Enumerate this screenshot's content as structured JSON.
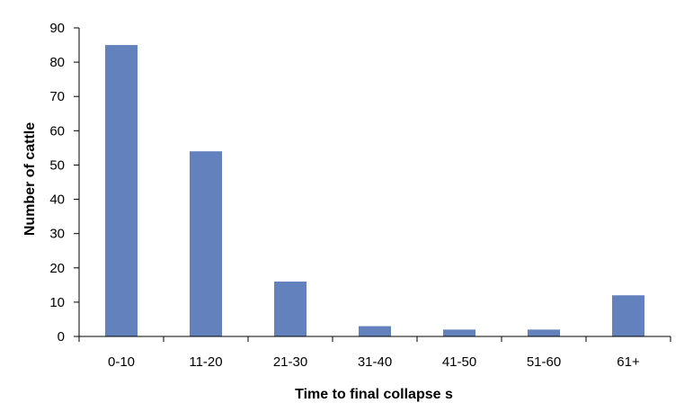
{
  "chart_data": {
    "type": "bar",
    "title": "",
    "xlabel": "Time to final collapse s",
    "ylabel": "Number of cattle",
    "categories": [
      "0-10",
      "11-20",
      "21-30",
      "31-40",
      "41-50",
      "51-60",
      "61+"
    ],
    "values": [
      85,
      54,
      16,
      3,
      2,
      2,
      12
    ],
    "ylim": [
      0,
      90
    ],
    "yticks": [
      0,
      10,
      20,
      30,
      40,
      50,
      60,
      70,
      80,
      90
    ],
    "grid": false,
    "legend": "none",
    "bar_color": "#6281BD",
    "axis_color": "#000000"
  }
}
